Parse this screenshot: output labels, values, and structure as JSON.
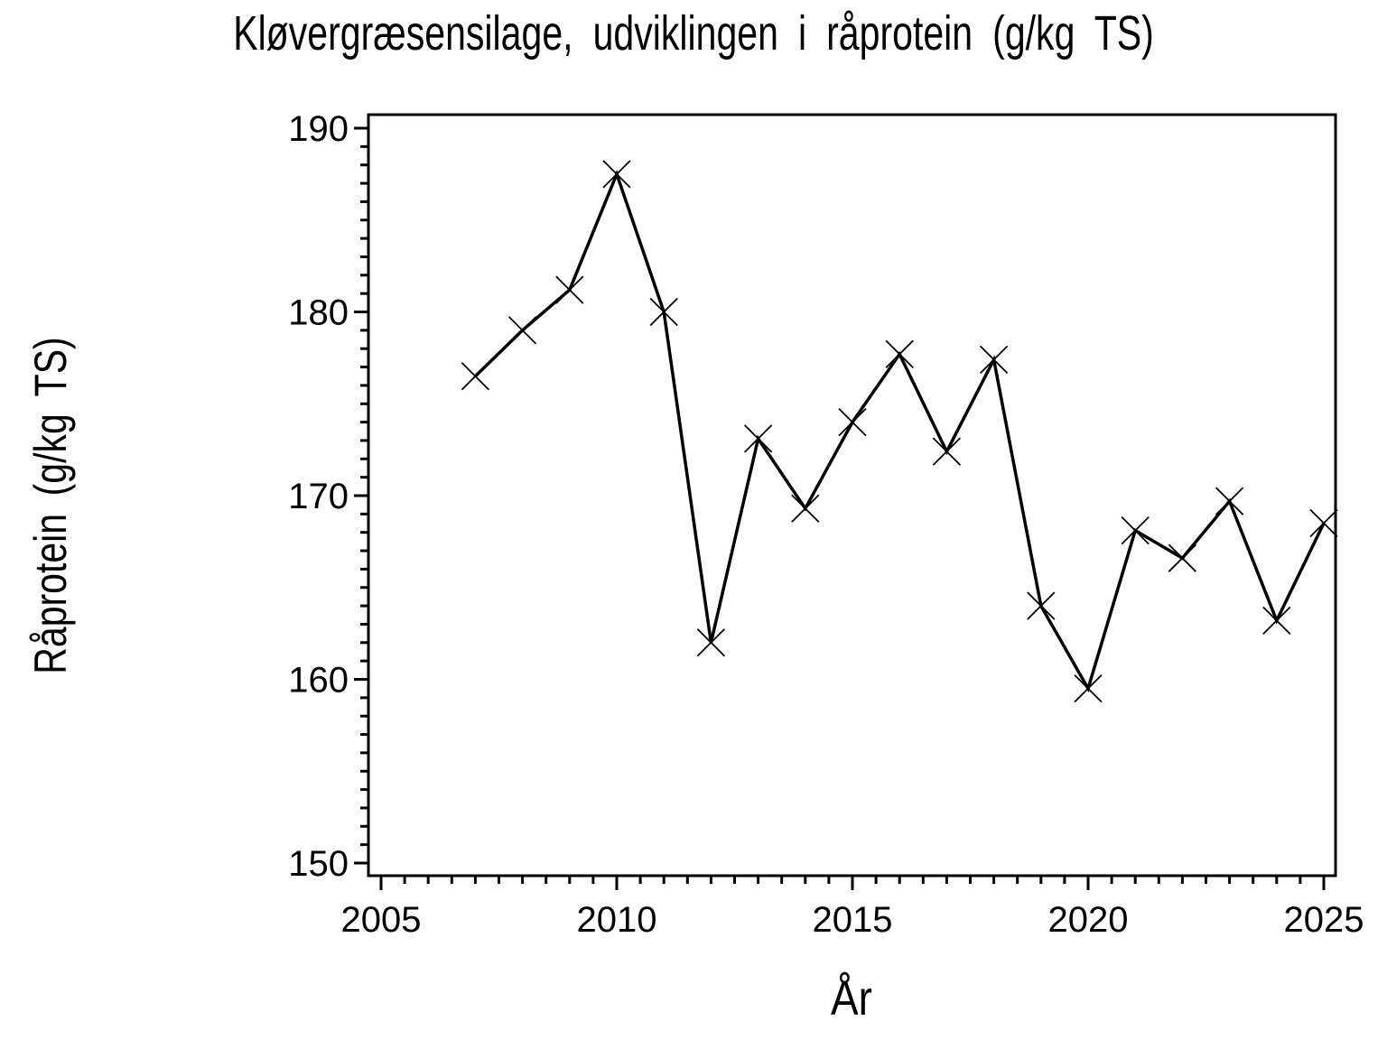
{
  "chart_data": {
    "type": "line",
    "title": "Kløvergræsensilage, udviklingen i råprotein (g/kg TS)",
    "xlabel": "År",
    "ylabel": "Råprotein (g/kg TS)",
    "x": [
      2007,
      2008,
      2009,
      2010,
      2011,
      2012,
      2013,
      2014,
      2015,
      2016,
      2017,
      2018,
      2019,
      2020,
      2021,
      2022,
      2023,
      2024,
      2025
    ],
    "series": [
      {
        "name": "Råprotein (g/kg TS)",
        "values": [
          176.5,
          179.0,
          181.2,
          187.5,
          180.0,
          162.0,
          173.1,
          169.3,
          174.0,
          177.7,
          172.4,
          177.4,
          164.0,
          159.5,
          168.1,
          166.6,
          169.7,
          163.2,
          168.5
        ]
      }
    ],
    "xlim": [
      2005,
      2025
    ],
    "ylim": [
      150,
      190
    ],
    "x_ticks": [
      2005,
      2010,
      2015,
      2020,
      2025
    ],
    "y_ticks": [
      150,
      160,
      170,
      180,
      190
    ],
    "x_minor_tick_step": 0.5,
    "y_minor_tick_step": 1,
    "grid": false,
    "legend_position": "none",
    "marker": "x",
    "line_color": "#000000",
    "background_color": "#ffffff"
  }
}
